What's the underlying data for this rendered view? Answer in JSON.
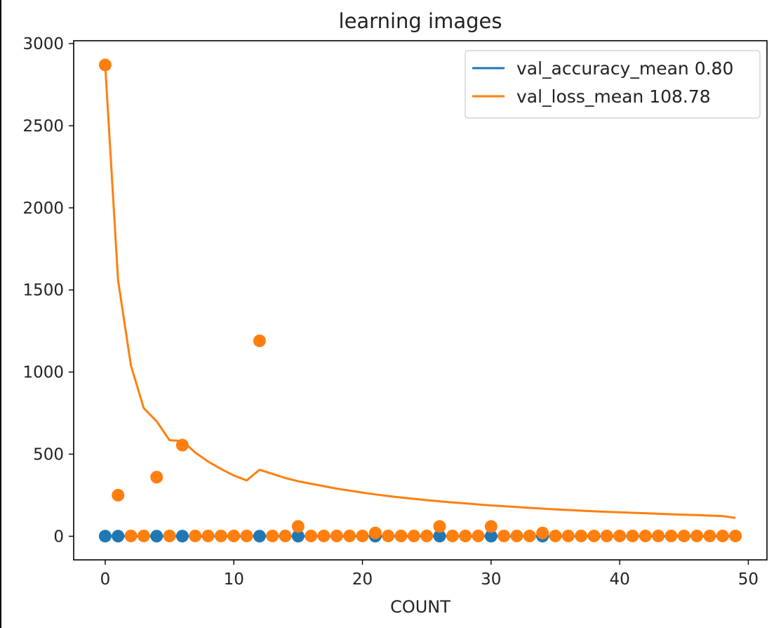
{
  "chart_data": {
    "type": "line",
    "title": "learning images",
    "xlabel": "COUNT",
    "ylabel": "",
    "xlim": [
      -2.45,
      51.45
    ],
    "ylim": [
      -143.7,
      3017.5
    ],
    "x_ticks": [
      0,
      10,
      20,
      30,
      40,
      50
    ],
    "y_ticks": [
      0,
      500,
      1000,
      1500,
      2000,
      2500,
      3000
    ],
    "grid": false,
    "legend_position": "top-right",
    "colors": {
      "val_accuracy": "#1f77b4",
      "val_loss": "#ff7f0e"
    },
    "series": [
      {
        "name": "val_accuracy_mean 0.80",
        "kind": "line",
        "color": "#1f77b4",
        "x": [
          0,
          1,
          2,
          3,
          4,
          5,
          6,
          7,
          8,
          9,
          10,
          11,
          12,
          13,
          14,
          15,
          16,
          17,
          18,
          19,
          20,
          21,
          22,
          23,
          24,
          25,
          26,
          27,
          28,
          29,
          30,
          31,
          32,
          33,
          34,
          35,
          36,
          37,
          38,
          39,
          40,
          41,
          42,
          43,
          44,
          45,
          46,
          47,
          48,
          49
        ],
        "values": [
          0.8,
          0.8,
          0.8,
          0.8,
          0.8,
          0.8,
          0.8,
          0.8,
          0.8,
          0.8,
          0.8,
          0.8,
          0.8,
          0.8,
          0.8,
          0.8,
          0.8,
          0.8,
          0.8,
          0.8,
          0.8,
          0.8,
          0.8,
          0.8,
          0.8,
          0.8,
          0.8,
          0.8,
          0.8,
          0.8,
          0.8,
          0.8,
          0.8,
          0.8,
          0.8,
          0.8,
          0.8,
          0.8,
          0.8,
          0.8,
          0.8,
          0.8,
          0.8,
          0.8,
          0.8,
          0.8,
          0.8,
          0.8,
          0.8,
          0.8
        ]
      },
      {
        "name": "val_loss_mean 108.78",
        "kind": "line",
        "color": "#ff7f0e",
        "x": [
          0,
          1,
          2,
          3,
          4,
          5,
          6,
          7,
          8,
          9,
          10,
          11,
          12,
          13,
          14,
          15,
          16,
          17,
          18,
          19,
          20,
          21,
          22,
          23,
          24,
          25,
          26,
          27,
          28,
          29,
          30,
          31,
          32,
          33,
          34,
          35,
          36,
          37,
          38,
          39,
          40,
          41,
          42,
          43,
          44,
          45,
          46,
          47,
          48,
          49
        ],
        "values": [
          2870,
          1560,
          1040,
          780,
          700,
          585,
          580,
          510,
          455,
          410,
          370,
          340,
          405,
          380,
          355,
          335,
          320,
          305,
          290,
          278,
          266,
          255,
          245,
          236,
          228,
          220,
          213,
          206,
          200,
          194,
          188,
          183,
          178,
          173,
          168,
          164,
          160,
          156,
          152,
          149,
          146,
          143,
          140,
          137,
          134,
          131,
          129,
          126,
          123,
          112
        ]
      },
      {
        "name": "",
        "kind": "scatter",
        "color": "#1f77b4",
        "x": [
          0,
          1,
          4,
          6,
          12,
          15,
          21,
          26,
          30,
          34
        ],
        "values": [
          0.8,
          0.8,
          0.8,
          0.8,
          0.8,
          0.8,
          0.8,
          0.8,
          0.8,
          0.8
        ]
      },
      {
        "name": "",
        "kind": "scatter",
        "color": "#ff7f0e",
        "x": [
          0,
          1,
          2,
          3,
          4,
          5,
          6,
          7,
          8,
          9,
          10,
          11,
          12,
          13,
          14,
          15,
          16,
          17,
          18,
          19,
          20,
          21,
          22,
          23,
          24,
          25,
          26,
          27,
          28,
          29,
          30,
          31,
          32,
          33,
          34,
          35,
          36,
          37,
          38,
          39,
          40,
          41,
          42,
          43,
          44,
          45,
          46,
          47,
          48,
          49
        ],
        "values": [
          2870,
          250,
          2,
          2,
          360,
          2,
          555,
          2,
          2,
          2,
          2,
          2,
          1190,
          2,
          2,
          60,
          2,
          2,
          2,
          2,
          2,
          20,
          2,
          2,
          2,
          2,
          60,
          2,
          2,
          2,
          60,
          2,
          2,
          2,
          20,
          2,
          2,
          2,
          2,
          2,
          2,
          2,
          2,
          2,
          2,
          2,
          2,
          2,
          2,
          2
        ]
      }
    ]
  }
}
